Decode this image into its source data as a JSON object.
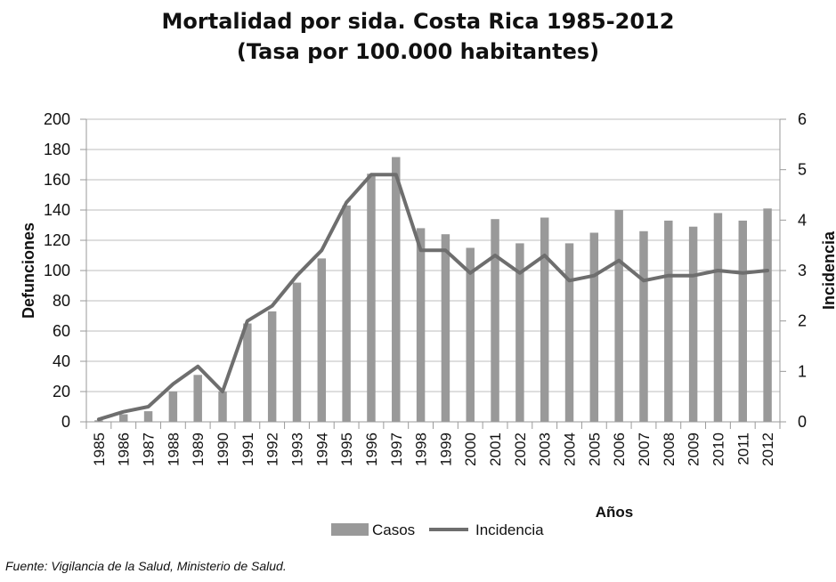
{
  "chart_data": {
    "type": "bar",
    "title": "Mortalidad por sida. Costa Rica 1985-2012",
    "subtitle": "(Tasa por 100.000 habitantes)",
    "xlabel": "Años",
    "ylabel": "Defunciones",
    "y2label": "Incidencia",
    "categories": [
      "1985",
      "1986",
      "1987",
      "1988",
      "1989",
      "1990",
      "1991",
      "1992",
      "1993",
      "1994",
      "1995",
      "1996",
      "1997",
      "1998",
      "1999",
      "2000",
      "2001",
      "2002",
      "2003",
      "2004",
      "2005",
      "2006",
      "2007",
      "2008",
      "2009",
      "2010",
      "2011",
      "2012"
    ],
    "ylim": [
      0,
      200
    ],
    "y2lim": [
      0,
      6
    ],
    "yticks": [
      "0",
      "20",
      "40",
      "60",
      "80",
      "100",
      "120",
      "140",
      "160",
      "180",
      "200"
    ],
    "y2ticks": [
      "0",
      "1",
      "2",
      "3",
      "4",
      "5",
      "6"
    ],
    "grid": true,
    "legend_position": "bottom-center",
    "series": [
      {
        "name": "Casos",
        "type": "bar",
        "axis": "left",
        "color": "#999999",
        "values": [
          1,
          5,
          7,
          20,
          31,
          20,
          65,
          73,
          92,
          108,
          143,
          164,
          175,
          128,
          124,
          115,
          134,
          118,
          135,
          118,
          125,
          140,
          126,
          133,
          129,
          138,
          133,
          141
        ]
      },
      {
        "name": "Incidencia",
        "type": "line",
        "axis": "right",
        "color": "#6e6e6e",
        "values": [
          0.05,
          0.2,
          0.3,
          0.75,
          1.1,
          0.6,
          2.0,
          2.3,
          2.9,
          3.4,
          4.35,
          4.9,
          4.9,
          3.4,
          3.4,
          2.95,
          3.3,
          2.95,
          3.3,
          2.8,
          2.9,
          3.2,
          2.8,
          2.9,
          2.9,
          3.0,
          2.95,
          3.0
        ]
      }
    ],
    "source": "Fuente: Vigilancia de la Salud, Ministerio de Salud."
  }
}
